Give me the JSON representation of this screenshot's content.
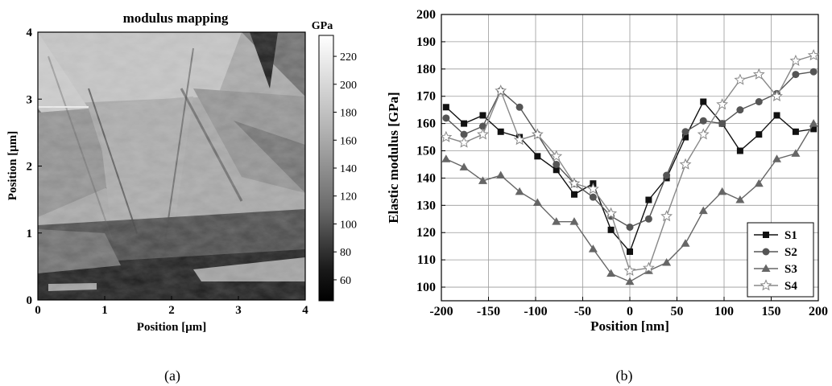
{
  "panel_a": {
    "caption": "(a)",
    "chart_data": {
      "type": "heatmap",
      "title": "modulus mapping",
      "xlabel": "Position [μm]",
      "ylabel": "Position [μm]",
      "xlim": [
        0,
        4
      ],
      "ylim": [
        0,
        4
      ],
      "xticks": [
        "0",
        "1",
        "2",
        "3",
        "4"
      ],
      "yticks": [
        "0",
        "1",
        "2",
        "3",
        "4"
      ],
      "colorbar": {
        "unit": "GPa",
        "range": [
          45,
          235
        ],
        "ticks": [
          "60",
          "80",
          "100",
          "120",
          "140",
          "160",
          "180",
          "200",
          "220"
        ],
        "tick_values": [
          60,
          80,
          100,
          120,
          140,
          160,
          180,
          200,
          220
        ]
      }
    }
  },
  "panel_b": {
    "caption": "(b)",
    "chart_data": {
      "type": "line",
      "xlabel": "Position [nm]",
      "ylabel": "Elastic modulus [GPa]",
      "xlim": [
        -200,
        200
      ],
      "ylim": [
        95,
        200
      ],
      "grid": true,
      "legend_position": "bottom-right",
      "xticks": [
        "-200",
        "-150",
        "-100",
        "-50",
        "0",
        "50",
        "100",
        "150",
        "200"
      ],
      "yticks": [
        "100",
        "110",
        "120",
        "130",
        "140",
        "150",
        "160",
        "170",
        "180",
        "190",
        "200"
      ],
      "x": [
        -195,
        -176,
        -156,
        -137,
        -117,
        -98,
        -78,
        -59,
        -39,
        -20,
        0,
        20,
        39,
        59,
        78,
        98,
        117,
        137,
        156,
        176,
        195
      ],
      "series": [
        {
          "name": "S1",
          "marker": "square",
          "color": "#111111",
          "values": [
            166,
            160,
            163,
            157,
            155,
            148,
            143,
            134,
            138,
            121,
            113,
            132,
            140,
            155,
            168,
            160,
            150,
            156,
            163,
            157,
            158
          ]
        },
        {
          "name": "S2",
          "marker": "circle",
          "color": "#555555",
          "values": [
            162,
            156,
            159,
            172,
            166,
            156,
            145,
            138,
            133,
            126,
            122,
            125,
            141,
            157,
            161,
            160,
            165,
            168,
            171,
            178,
            179
          ]
        },
        {
          "name": "S3",
          "marker": "triangle",
          "color": "#666666",
          "values": [
            147,
            144,
            139,
            141,
            135,
            131,
            124,
            124,
            114,
            105,
            102,
            106,
            109,
            116,
            128,
            135,
            132,
            138,
            147,
            149,
            160
          ]
        },
        {
          "name": "S4",
          "marker": "star",
          "color": "#888888",
          "values": [
            155,
            153,
            156,
            172,
            154,
            156,
            148,
            138,
            136,
            127,
            106,
            107,
            126,
            145,
            156,
            167,
            176,
            178,
            170,
            183,
            185
          ]
        }
      ]
    }
  }
}
